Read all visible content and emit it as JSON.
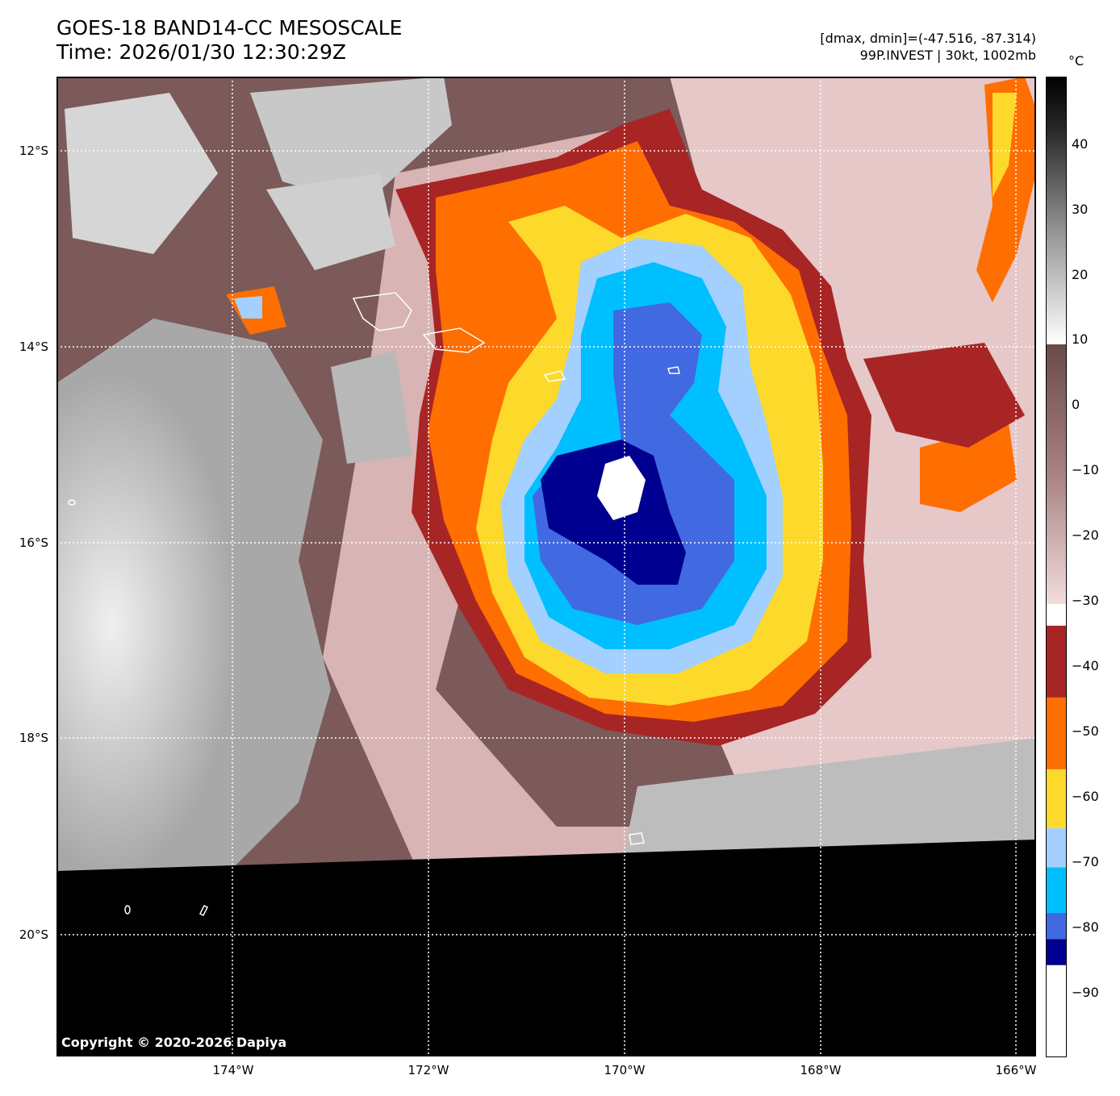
{
  "header": {
    "title_line1": "GOES-18 BAND14-CC MESOSCALE",
    "title_line2": "Time: 2026/01/30 12:30:29Z",
    "dmax_dmin": "[dmax, dmin]=(-47.516, -87.314)",
    "storm": "99P.INVEST | 30kt, 1002mb"
  },
  "colorbar": {
    "unit": "°C",
    "ticks": [
      "40",
      "30",
      "20",
      "10",
      "0",
      "−10",
      "−20",
      "−30",
      "−40",
      "−50",
      "−60",
      "−70",
      "−80",
      "−90"
    ],
    "segments": [
      {
        "from": -100,
        "to": -86,
        "color": "#ffffff"
      },
      {
        "from": -86,
        "to": -82,
        "color": "#000090"
      },
      {
        "from": -82,
        "to": -78,
        "color": "#4169e1"
      },
      {
        "from": -78,
        "to": -71,
        "color": "#00bfff"
      },
      {
        "from": -71,
        "to": -65,
        "color": "#a3d0ff"
      },
      {
        "from": -65,
        "to": -56,
        "color": "#fcd92b"
      },
      {
        "from": -56,
        "to": -45,
        "color": "#ff6e00"
      },
      {
        "from": -45,
        "to": -34,
        "color": "#a82525"
      }
    ],
    "range": [
      -100,
      50
    ]
  },
  "axes": {
    "lat_labels": [
      "12°S",
      "14°S",
      "16°S",
      "18°S",
      "20°S"
    ],
    "lon_labels": [
      "174°W",
      "172°W",
      "170°W",
      "168°W",
      "166°W"
    ]
  },
  "copyright": "Copyright © 2020-2026 Dapiya",
  "colors": {
    "cloud_gray": "#cfcfcf",
    "clear_brown": "#7a5757",
    "warm_pink": "#e8c9c9",
    "nodata": "#000000"
  }
}
